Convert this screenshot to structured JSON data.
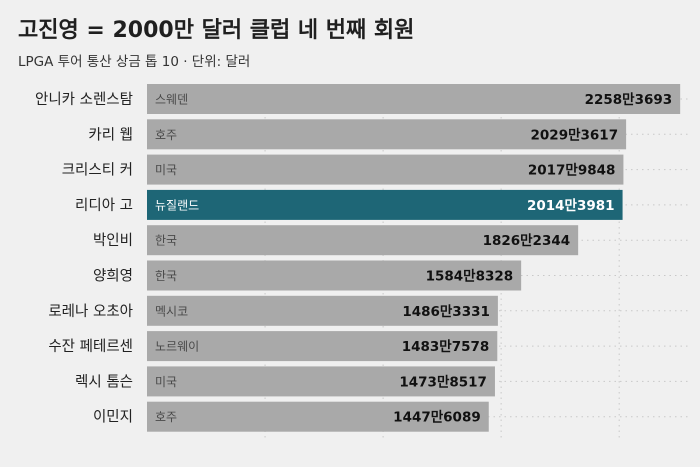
{
  "header": {
    "title": "고진영 = 2000만 달러 클럽 네 번째 회원",
    "subtitle": "LPGA 투어 통산 상금 톱 10 · 단위: 달러"
  },
  "colors": {
    "bar": "#a9a9a9",
    "highlight": "#1e6676",
    "background": "#f0f0f0",
    "grid": "#c8c8c8"
  },
  "chart_data": {
    "type": "bar",
    "orientation": "horizontal",
    "title": "고진영 = 2000만 달러 클럽 네 번째 회원",
    "subtitle": "LPGA 투어 통산 상금 톱 10 · 단위: 달러",
    "xlim": [
      0,
      23000000
    ],
    "grid": true,
    "categories": [
      "안니카 소렌스탐",
      "카리 웹",
      "크리스티 커",
      "리디아 고",
      "박인비",
      "양희영",
      "로레나 오초아",
      "수잔 페테르센",
      "렉시 톰슨",
      "이민지"
    ],
    "countries": [
      "스웨덴",
      "호주",
      "미국",
      "뉴질랜드",
      "한국",
      "한국",
      "멕시코",
      "노르웨이",
      "미국",
      "호주"
    ],
    "values": [
      22583693,
      20293617,
      20179848,
      20143981,
      18262344,
      15848328,
      14863331,
      14837578,
      14738517,
      14476089
    ],
    "value_labels": [
      "2258만3693",
      "2029만3617",
      "2017만9848",
      "2014만3981",
      "1826만2344",
      "1584만8328",
      "1486만3331",
      "1483만7578",
      "1473만8517",
      "1447만6089"
    ],
    "highlight_index": 3
  }
}
